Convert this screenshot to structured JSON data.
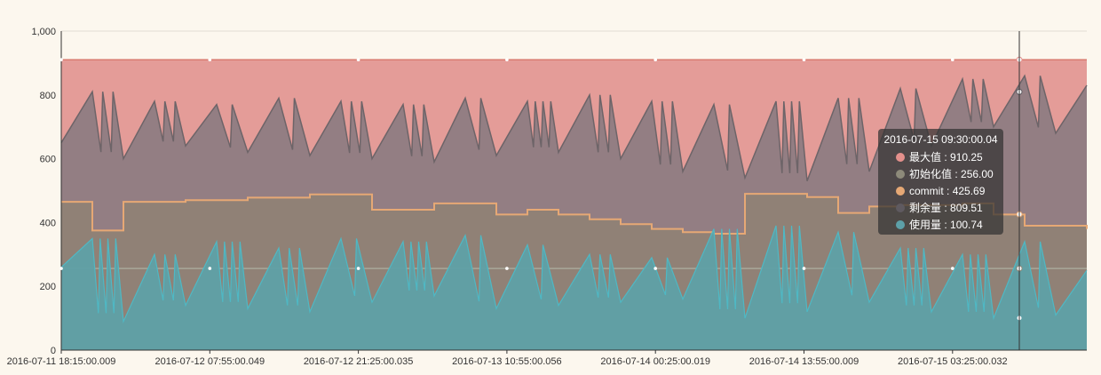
{
  "chart_data": {
    "type": "area",
    "title": "",
    "xlabel": "",
    "ylabel": "",
    "ylim": [
      0,
      1000
    ],
    "yticks": [
      "0",
      "200",
      "400",
      "600",
      "800",
      "1,000"
    ],
    "xticks": [
      "2016-07-11 18:15:00.009",
      "2016-07-12 07:55:00.049",
      "2016-07-12 21:25:00.035",
      "2016-07-13 10:55:00.056",
      "2016-07-14 00:25:00.019",
      "2016-07-14 13:55:00.009",
      "2016-07-15 03:25:00.032"
    ],
    "series": [
      {
        "name": "最大值",
        "color": "#e4908c",
        "values": [
          910.25,
          910.25
        ]
      },
      {
        "name": "初始化值",
        "color": "#8d8a7a",
        "values": [
          256,
          256
        ]
      },
      {
        "name": "commit",
        "color": "#e6a875",
        "values": [
          465,
          375,
          465,
          465,
          470,
          470,
          478,
          478,
          488,
          488,
          440,
          440,
          460,
          460,
          425,
          440,
          425,
          410,
          395,
          380,
          370,
          365,
          490,
          490,
          480,
          430,
          450,
          455,
          455,
          460,
          425,
          390,
          390,
          380
        ]
      },
      {
        "name": "剩余量",
        "color": "#7a6e72",
        "values": [
          650,
          810,
          600,
          780,
          640,
          770,
          620,
          790,
          610,
          780,
          600,
          770,
          590,
          790,
          610,
          780,
          620,
          800,
          600,
          780,
          560,
          770,
          540,
          780,
          530,
          790,
          560,
          820,
          640,
          850,
          700,
          860,
          680,
          830
        ]
      },
      {
        "name": "使用量",
        "color": "#5da0a8",
        "values": [
          260,
          350,
          90,
          300,
          140,
          340,
          130,
          320,
          120,
          350,
          150,
          340,
          170,
          360,
          130,
          330,
          140,
          300,
          150,
          290,
          160,
          380,
          100,
          390,
          120,
          370,
          150,
          320,
          120,
          300,
          100,
          340,
          110,
          250
        ]
      }
    ],
    "tooltip": {
      "title": "2016-07-15 09:30:00.04",
      "rows": [
        {
          "label": "最大值",
          "value": "910.25",
          "color": "#e4908c"
        },
        {
          "label": "初始化值",
          "value": "256.00",
          "color": "#8d8a7a"
        },
        {
          "label": "commit",
          "value": "425.69",
          "color": "#e6a875"
        },
        {
          "label": "剩余量",
          "value": "809.51",
          "color": "#5f5a60"
        },
        {
          "label": "使用量",
          "value": "100.74",
          "color": "#5da0a8"
        }
      ]
    },
    "grid": true,
    "legend": "none"
  }
}
